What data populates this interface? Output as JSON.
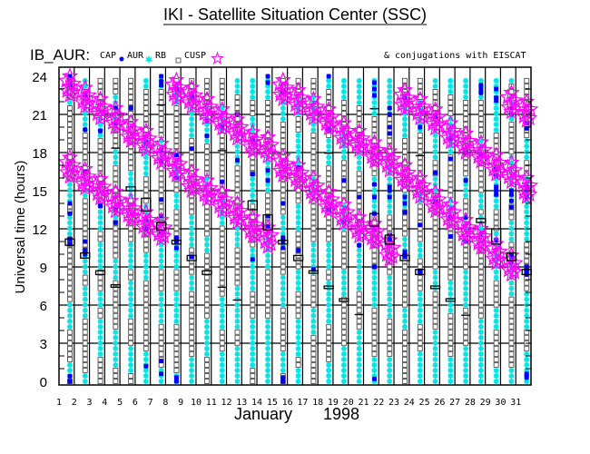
{
  "title": "IKI - Satellite Situation Center (SSC)",
  "subtitle": "IB_AUR:",
  "legend": {
    "items": [
      {
        "label": "CAP",
        "symbol": "dot",
        "color": "#0000ff"
      },
      {
        "label": "AUR",
        "symbol": "asterisk",
        "color": "#00e5e5"
      },
      {
        "label": "RB",
        "symbol": "square",
        "color": "#606060"
      },
      {
        "label": "CUSP",
        "symbol": "star",
        "color": "#ff00ff"
      }
    ],
    "note": "& conjugations with EISCAT"
  },
  "chart_data": {
    "type": "scatter",
    "xlabel_month": "January",
    "xlabel_year": "1998",
    "ylabel": "Universal time (hours)",
    "xlim": [
      1,
      32
    ],
    "ylim": [
      0,
      24
    ],
    "x_ticks": [
      "1",
      "2",
      "3",
      "4",
      "5",
      "6",
      "7",
      "8",
      "9",
      "10",
      "11",
      "12",
      "13",
      "14",
      "15",
      "16",
      "17",
      "18",
      "19",
      "20",
      "21",
      "22",
      "23",
      "24",
      "25",
      "26",
      "27",
      "28",
      "29",
      "30",
      "31"
    ],
    "y_ticks": [
      "0",
      "3",
      "6",
      "9",
      "12",
      "15",
      "18",
      "21",
      "24"
    ],
    "grid": true,
    "days": [
      {
        "day": 1,
        "cusp": [
          23.2,
          16.8
        ],
        "eiscat": [
          [
            10.7,
            11.2
          ]
        ],
        "aur": [
          [
            0.3,
            1.5
          ],
          [
            4,
            6.4
          ],
          [
            11.5,
            13
          ],
          [
            14,
            15.5
          ],
          [
            21.5,
            22
          ]
        ],
        "cap": [
          0,
          0.4,
          10.8,
          11.2,
          13.2,
          14,
          24,
          23.6,
          23.3
        ]
      },
      {
        "day": 2,
        "cusp": [
          22.3,
          15.9
        ],
        "eiscat": [
          [
            9.7,
            10.1
          ]
        ],
        "aur": [
          [
            0,
            0.8
          ],
          [
            5,
            7.5
          ],
          [
            8.5,
            10
          ],
          [
            14.5,
            16
          ],
          [
            19.5,
            21.5
          ],
          [
            23,
            24
          ]
        ],
        "cap": [
          10,
          10.3,
          11,
          16.5,
          22.5,
          19.8
        ]
      },
      {
        "day": 3,
        "cusp": [
          21.4,
          15.1
        ],
        "eiscat": [
          [
            8.4,
            8.7
          ]
        ],
        "aur": [
          [
            2,
            5
          ],
          [
            5.8,
            7
          ],
          [
            9,
            11
          ],
          [
            12,
            14
          ],
          [
            19,
            21
          ]
        ],
        "cap": [
          13.8,
          19.7
        ]
      },
      {
        "day": 4,
        "cusp": [
          20.7,
          14.1
        ],
        "eiscat": [
          [
            7.4,
            7.6
          ],
          [
            18.25,
            18.35
          ]
        ],
        "aur": [
          [
            1,
            4
          ],
          [
            8,
            9.5
          ],
          [
            12.5,
            14
          ],
          [
            17,
            18.2
          ],
          [
            20.5,
            22.5
          ]
        ],
        "cap": [
          12.5,
          13.5,
          20.3,
          21.5
        ]
      },
      {
        "day": 5,
        "cusp": [
          19.6,
          13.4
        ],
        "eiscat": [
          [
            15.0,
            15.3
          ]
        ],
        "aur": [
          [
            0.5,
            3
          ],
          [
            5,
            8
          ],
          [
            9,
            11
          ],
          [
            14.5,
            16.5
          ]
        ],
        "cap": [
          21.5
        ]
      },
      {
        "day": 6,
        "cusp": [
          18.9,
          12.5
        ],
        "eiscat": [
          [
            13.4,
            14.4
          ]
        ],
        "aur": [
          [
            0,
            2.3
          ],
          [
            8,
            10
          ],
          [
            12.5,
            14
          ],
          [
            16,
            19
          ],
          [
            23,
            24
          ]
        ],
        "cap": [
          12,
          12.7,
          18.8,
          1.2
        ]
      },
      {
        "day": 7,
        "cusp": [
          17.9,
          11.9
        ],
        "eiscat": [
          [
            11.9,
            12.5
          ],
          [
            21.65,
            21.75
          ]
        ],
        "aur": [
          [
            0,
            1
          ],
          [
            4.5,
            7
          ],
          [
            9,
            11
          ],
          [
            17,
            19
          ],
          [
            23,
            24
          ]
        ],
        "cap": [
          1.6,
          0.6,
          11.7,
          13,
          14.3,
          17.3,
          18.2,
          23.3,
          24,
          23.6
        ]
      },
      {
        "day": 8,
        "cusp": [
          22.9,
          16.9
        ],
        "eiscat": [
          [
            10.8,
            11.1
          ]
        ],
        "aur": [
          [
            0,
            0.8
          ],
          [
            4.5,
            7
          ],
          [
            9,
            11
          ],
          [
            13.5,
            15
          ],
          [
            16,
            17.5
          ],
          [
            21.5,
            23.5
          ]
        ],
        "cap": [
          0,
          0.3,
          10.5,
          11,
          11.3,
          16,
          17.8,
          23
        ]
      },
      {
        "day": 9,
        "cusp": [
          22.3,
          15.7
        ],
        "eiscat": [
          [
            9.5,
            9.9
          ]
        ],
        "aur": [
          [
            0,
            2
          ],
          [
            7,
            8.5
          ],
          [
            10.5,
            13
          ],
          [
            19,
            21.5
          ]
        ],
        "cap": [
          9.8,
          18.3,
          22.4
        ]
      },
      {
        "day": 10,
        "cusp": [
          21.4,
          15.0
        ],
        "eiscat": [
          [
            8.4,
            8.7
          ]
        ],
        "aur": [
          [
            2,
            5
          ],
          [
            10,
            11.2
          ],
          [
            14,
            16
          ],
          [
            18.5,
            21.5
          ]
        ],
        "cap": [
          19.3,
          20.5
        ]
      },
      {
        "day": 11,
        "cusp": [
          20.6,
          14.1
        ],
        "eiscat": [
          [
            7.3,
            7.4
          ],
          [
            18.05,
            18.15
          ]
        ],
        "aur": [
          [
            0,
            2.5
          ],
          [
            4,
            6.5
          ],
          [
            12.3,
            14.5
          ],
          [
            19.5,
            21.5
          ]
        ],
        "cap": [
          20,
          15.7
        ]
      },
      {
        "day": 12,
        "cusp": [
          19.8,
          13.2
        ],
        "eiscat": [
          [
            6.3,
            6.4
          ]
        ],
        "aur": [
          [
            0,
            3
          ],
          [
            4,
            7.5
          ],
          [
            10.5,
            12.5
          ],
          [
            17,
            19.5
          ],
          [
            22.5,
            24
          ]
        ],
        "cap": [
          17.4,
          21
        ]
      },
      {
        "day": 13,
        "cusp": [
          18.8,
          12.1
        ],
        "eiscat": [
          [
            13.5,
            14.2
          ]
        ],
        "aur": [
          [
            1,
            5
          ],
          [
            7,
            10.5
          ],
          [
            14,
            16
          ],
          [
            19.5,
            21
          ],
          [
            22,
            24
          ]
        ],
        "cap": [
          9.6,
          16.3,
          19
        ]
      },
      {
        "day": 14,
        "cusp": [
          18.4,
          11.3
        ],
        "eiscat": [
          [
            11.9,
            13.1
          ]
        ],
        "aur": [
          [
            0,
            5
          ],
          [
            9,
            12
          ],
          [
            15,
            18
          ],
          [
            22,
            24
          ]
        ],
        "cap": [
          12.2,
          13,
          15.8,
          16.6,
          24,
          23.5
        ]
      },
      {
        "day": 15,
        "cusp": [
          22.9,
          16.9
        ],
        "eiscat": [
          [
            10.8,
            11.1
          ]
        ],
        "aur": [
          [
            0.5,
            2.5
          ],
          [
            6,
            8.5
          ],
          [
            10.5,
            13
          ],
          [
            20.5,
            22
          ]
        ],
        "cap": [
          0,
          0.3,
          10.5,
          11,
          11.3,
          14,
          22.8
        ]
      },
      {
        "day": 16,
        "cusp": [
          22.1,
          16.2
        ],
        "eiscat": [
          [
            9.5,
            9.9
          ]
        ],
        "aur": [
          [
            0,
            1
          ],
          [
            2,
            5
          ],
          [
            7,
            9
          ],
          [
            12,
            14
          ],
          [
            17,
            19.5
          ],
          [
            21,
            22.5
          ]
        ],
        "cap": [
          10.3,
          16.8
        ]
      },
      {
        "day": 17,
        "cusp": [
          21.4,
          15.2
        ],
        "eiscat": [
          [
            8.5,
            8.7
          ]
        ],
        "aur": [
          [
            3.5,
            6
          ],
          [
            8.5,
            11
          ],
          [
            14.5,
            16
          ],
          [
            19.5,
            22.5
          ]
        ],
        "cap": [
          8.8
        ]
      },
      {
        "day": 18,
        "cusp": [
          20.6,
          14.1
        ],
        "eiscat": [
          [
            7.3,
            7.5
          ],
          [
            17.85,
            17.95
          ]
        ],
        "aur": [
          [
            0,
            1.5
          ],
          [
            4.5,
            8
          ],
          [
            9,
            11
          ],
          [
            17,
            19
          ],
          [
            23,
            24
          ]
        ],
        "cap": [
          13.5,
          19.8,
          24
        ]
      },
      {
        "day": 19,
        "cusp": [
          19.5,
          13.1
        ],
        "eiscat": [
          [
            6.3,
            6.5
          ]
        ],
        "aur": [
          [
            0,
            3
          ],
          [
            6.5,
            9
          ],
          [
            12,
            14
          ],
          [
            17.5,
            20
          ],
          [
            22,
            24
          ]
        ],
        "cap": [
          15.8,
          12.5
        ]
      },
      {
        "day": 20,
        "cusp": [
          18.9,
          12.1
        ],
        "eiscat": [
          [
            5.15,
            5.25
          ]
        ],
        "aur": [
          [
            0,
            4
          ],
          [
            7,
            12
          ],
          [
            16.5,
            18.5
          ],
          [
            21.5,
            24
          ]
        ],
        "cap": [
          10.7,
          14.5
        ]
      },
      {
        "day": 21,
        "cusp": [
          18.0,
          11.6
        ],
        "eiscat": [
          [
            12.2,
            13.2
          ],
          [
            21.35,
            21.45
          ]
        ],
        "aur": [
          [
            0,
            2
          ],
          [
            6,
            9
          ],
          [
            13,
            16
          ],
          [
            21,
            24
          ]
        ],
        "cap": [
          0.2,
          9,
          12,
          13.2,
          15.5,
          14.5,
          23,
          23.5,
          22.5
        ]
      },
      {
        "day": 22,
        "cusp": [
          17.3,
          10.3
        ],
        "eiscat": [
          [
            10.8,
            11.5
          ]
        ],
        "aur": [
          [
            0,
            2
          ],
          [
            5,
            8.5
          ],
          [
            13,
            17
          ],
          [
            21,
            24
          ]
        ],
        "cap": [
          11.2,
          11.5,
          15,
          14.5,
          15.3,
          19.5,
          20,
          21,
          21.5
        ]
      },
      {
        "day": 23,
        "cusp": [
          22.1,
          16.2
        ],
        "eiscat": [
          [
            9.5,
            9.9
          ]
        ],
        "aur": [
          [
            4,
            6
          ],
          [
            10,
            11.5
          ],
          [
            13.5,
            14.8
          ],
          [
            19,
            22.5
          ]
        ],
        "cap": [
          10.2,
          10,
          9.8,
          14.5,
          14,
          13.3,
          22.3
        ]
      },
      {
        "day": 24,
        "cusp": [
          21.4,
          15.2
        ],
        "eiscat": [
          [
            8.4,
            8.8
          ],
          [
            17.65,
            17.75
          ]
        ],
        "aur": [
          [
            0,
            2.5
          ],
          [
            4.5,
            7
          ],
          [
            9.5,
            11
          ],
          [
            14,
            15
          ],
          [
            19.5,
            22
          ]
        ],
        "cap": [
          8.5,
          8.7,
          12.3,
          20
        ]
      },
      {
        "day": 25,
        "cusp": [
          20.6,
          14.1
        ],
        "eiscat": [
          [
            7.3,
            7.5
          ]
        ],
        "aur": [
          [
            0,
            4
          ],
          [
            7,
            9
          ],
          [
            15,
            16
          ],
          [
            17.5,
            20.5
          ],
          [
            23,
            24
          ]
        ],
        "cap": [
          14.1,
          16.4,
          20.8
        ]
      },
      {
        "day": 26,
        "cusp": [
          19.5,
          13.1
        ],
        "eiscat": [
          [
            6.3,
            6.5
          ]
        ],
        "aur": [
          [
            0,
            2
          ],
          [
            5.5,
            8
          ],
          [
            12.5,
            14.5
          ],
          [
            18,
            21
          ],
          [
            22.5,
            24
          ]
        ],
        "cap": [
          11.4,
          17.5,
          19.1,
          12.9
        ]
      },
      {
        "day": 27,
        "cusp": [
          18.7,
          11.9
        ],
        "eiscat": [
          [
            5.1,
            5.2
          ]
        ],
        "aur": [
          [
            0,
            3
          ],
          [
            6,
            9
          ],
          [
            12,
            13
          ],
          [
            14.5,
            16
          ],
          [
            22,
            24
          ]
        ],
        "cap": [
          12.9,
          11,
          18,
          15.8
        ]
      },
      {
        "day": 28,
        "cusp": [
          18.0,
          11.2
        ],
        "eiscat": [
          [
            12.5,
            12.8
          ]
        ],
        "aur": [
          [
            0,
            5
          ],
          [
            11.5,
            13
          ],
          [
            13.5,
            15
          ],
          [
            17.5,
            19
          ],
          [
            22,
            24
          ]
        ],
        "cap": [
          11.6,
          17.8,
          23.3,
          23,
          22.7
        ]
      },
      {
        "day": 29,
        "cusp": [
          17.0,
          10.0
        ],
        "eiscat": [
          [
            10.8,
            12.0
          ]
        ],
        "aur": [
          [
            0,
            1
          ],
          [
            4,
            6
          ],
          [
            8,
            11.8
          ],
          [
            13.5,
            16
          ],
          [
            19.5,
            24
          ]
        ],
        "cap": [
          11.1,
          16.2,
          16.7,
          15,
          15.3,
          14.7,
          23,
          22.3,
          22.1
        ]
      },
      {
        "day": 30,
        "cusp": [
          21.9,
          16.4,
          9.1
        ],
        "eiscat": [
          [
            9.5,
            10.1
          ]
        ],
        "aur": [
          [
            0,
            1
          ],
          [
            6.5,
            10
          ],
          [
            11,
            12.5
          ],
          [
            14,
            18
          ],
          [
            20.5,
            22.5
          ],
          [
            23.5,
            24
          ]
        ],
        "cap": [
          9.8,
          10,
          9.4,
          15,
          14.7,
          14.2,
          13.7,
          21.5,
          21
        ]
      },
      {
        "day": 31,
        "cusp": [
          21.2,
          15.2
        ],
        "eiscat": [
          [
            8.4,
            8.8
          ]
        ],
        "aur": [
          [
            0,
            2.5
          ],
          [
            4,
            7
          ],
          [
            11,
            16
          ],
          [
            17.5,
            19
          ]
        ],
        "cap": [
          0.6,
          0.3,
          8.7,
          9,
          8.4,
          14.5,
          15,
          15.3,
          19.9,
          20.3
        ]
      }
    ]
  }
}
